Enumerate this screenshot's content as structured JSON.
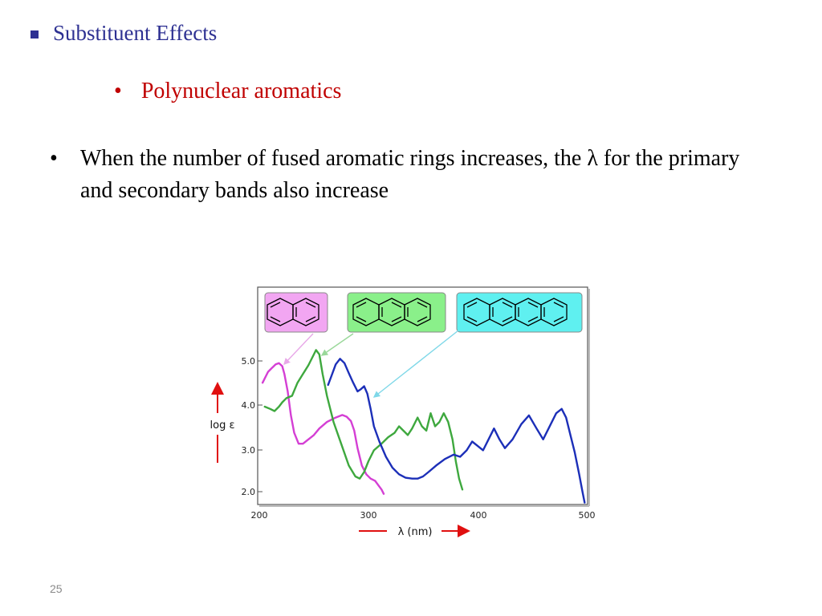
{
  "slide": {
    "heading": "Substituent Effects",
    "subheading": "Polynuclear aromatics",
    "bullet_text": "When the number of fused aromatic rings increases, the λ for the primary and secondary bands also increase",
    "bullet_glyph": "•",
    "slide_number": "25"
  },
  "chart_data": {
    "type": "line",
    "xlabel": "λ (nm)",
    "ylabel": "log ε",
    "xlim": [
      200,
      500
    ],
    "ylim": [
      1.7,
      5.8
    ],
    "x_ticks": [
      "200",
      "300",
      "400",
      "500"
    ],
    "y_ticks": [
      "5.0",
      "4.0",
      "3.0",
      "2.0"
    ],
    "grid": false,
    "legend": "structure boxes along top with arrows pointing to curves",
    "structures": [
      {
        "name": "naphthalene",
        "rings": 2,
        "box_color": "#f2a6f2"
      },
      {
        "name": "anthracene",
        "rings": 3,
        "box_color": "#8af08a"
      },
      {
        "name": "tetracene",
        "rings": 4,
        "box_color": "#5ff0f0"
      }
    ],
    "series": [
      {
        "color": "#d43fd4",
        "x": [
          203,
          208,
          212,
          215,
          218,
          221,
          223,
          226,
          229,
          232,
          236,
          240,
          245,
          250,
          255,
          262,
          270,
          276,
          280,
          284,
          287,
          290,
          294,
          298,
          302,
          306,
          309,
          312,
          314
        ],
        "y": [
          4.5,
          4.75,
          4.85,
          4.92,
          4.95,
          4.88,
          4.7,
          4.3,
          3.75,
          3.35,
          3.1,
          3.1,
          3.2,
          3.3,
          3.45,
          3.6,
          3.7,
          3.76,
          3.72,
          3.62,
          3.4,
          3.0,
          2.6,
          2.4,
          2.3,
          2.25,
          2.15,
          2.05,
          1.95
        ]
      },
      {
        "color": "#3ea83e",
        "x": [
          205,
          210,
          214,
          218,
          221,
          225,
          230,
          235,
          240,
          245,
          249,
          252,
          255,
          258,
          262,
          268,
          275,
          282,
          288,
          292,
          296,
          300,
          305,
          312,
          318,
          324,
          328,
          332,
          336,
          340,
          345,
          349,
          353,
          357,
          361,
          365,
          369,
          373,
          377,
          380,
          383,
          386
        ],
        "y": [
          3.95,
          3.9,
          3.85,
          3.95,
          4.05,
          4.15,
          4.2,
          4.5,
          4.7,
          4.9,
          5.1,
          5.25,
          5.15,
          4.7,
          4.2,
          3.6,
          3.1,
          2.6,
          2.35,
          2.3,
          2.45,
          2.7,
          2.95,
          3.1,
          3.25,
          3.35,
          3.5,
          3.4,
          3.3,
          3.45,
          3.7,
          3.5,
          3.4,
          3.8,
          3.5,
          3.6,
          3.8,
          3.6,
          3.2,
          2.7,
          2.3,
          2.05
        ]
      },
      {
        "color": "#1c2fb8",
        "x": [
          263,
          266,
          270,
          274,
          278,
          282,
          286,
          290,
          293,
          296,
          299,
          302,
          305,
          310,
          316,
          322,
          328,
          334,
          340,
          345,
          350,
          355,
          362,
          370,
          378,
          384,
          390,
          395,
          400,
          405,
          410,
          415,
          420,
          425,
          432,
          440,
          447,
          454,
          460,
          467,
          472,
          477,
          481,
          485,
          489,
          493,
          496,
          498
        ],
        "y": [
          4.45,
          4.65,
          4.92,
          5.05,
          4.95,
          4.72,
          4.5,
          4.3,
          4.35,
          4.42,
          4.25,
          3.9,
          3.5,
          3.15,
          2.8,
          2.55,
          2.4,
          2.32,
          2.3,
          2.3,
          2.35,
          2.45,
          2.6,
          2.75,
          2.85,
          2.8,
          2.95,
          3.15,
          3.05,
          2.95,
          3.2,
          3.45,
          3.2,
          3.0,
          3.2,
          3.55,
          3.75,
          3.45,
          3.2,
          3.55,
          3.8,
          3.9,
          3.7,
          3.3,
          2.9,
          2.4,
          2.0,
          1.75
        ]
      }
    ]
  }
}
